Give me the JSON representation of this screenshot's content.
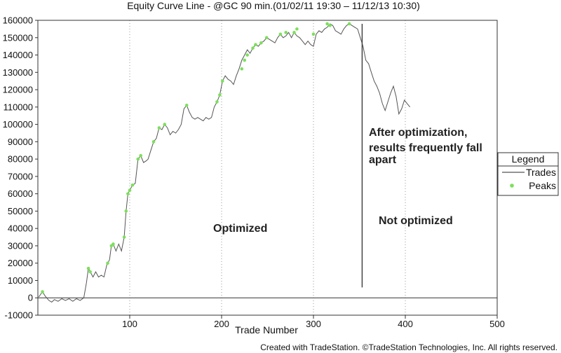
{
  "chart_data": {
    "type": "line",
    "title": "Equity Curve Line - @GC 90 min.(01/02/11 19:30 – 11/12/13 10:30)",
    "xlabel": "Trade Number",
    "ylabel": "",
    "xlim": [
      0,
      500
    ],
    "ylim": [
      -10000,
      160000
    ],
    "x_ticks": [
      100,
      200,
      300,
      400,
      500
    ],
    "y_ticks": [
      -10000,
      0,
      10000,
      20000,
      30000,
      40000,
      50000,
      60000,
      70000,
      80000,
      90000,
      100000,
      110000,
      120000,
      130000,
      140000,
      150000,
      160000
    ],
    "grid": "vertical-dotted",
    "legend": {
      "title": "Legend",
      "placement": "right",
      "entries": [
        {
          "label": "Trades",
          "marker": "line"
        },
        {
          "label": "Peaks",
          "marker": "dot"
        }
      ]
    },
    "series": [
      {
        "name": "Trades",
        "color": "#555555",
        "x": [
          1,
          5,
          8,
          12,
          15,
          18,
          22,
          26,
          30,
          34,
          38,
          42,
          46,
          50,
          53,
          55,
          57,
          60,
          63,
          66,
          69,
          72,
          75,
          78,
          80,
          82,
          85,
          88,
          91,
          94,
          96,
          98,
          100,
          103,
          106,
          109,
          112,
          115,
          118,
          120,
          123,
          126,
          129,
          132,
          135,
          138,
          141,
          144,
          147,
          150,
          153,
          156,
          159,
          162,
          165,
          168,
          171,
          174,
          177,
          180,
          183,
          186,
          189,
          192,
          195,
          198,
          201,
          204,
          207,
          210,
          213,
          216,
          219,
          222,
          225,
          228,
          231,
          234,
          237,
          240,
          243,
          246,
          249,
          252,
          255,
          258,
          261,
          264,
          267,
          270,
          273,
          276,
          279,
          282,
          285,
          288,
          291,
          294,
          297,
          300,
          303,
          306,
          309,
          312,
          315,
          318,
          321,
          324,
          327,
          330,
          333,
          336,
          339,
          342,
          345,
          348,
          351,
          354,
          357,
          360,
          363,
          366,
          369,
          372,
          375,
          378,
          381,
          384,
          387,
          390,
          393,
          396,
          399,
          402,
          405
        ],
        "y": [
          500,
          3500,
          1000,
          -1500,
          -2500,
          -1000,
          -2000,
          -500,
          -1500,
          -500,
          -2000,
          -500,
          -1500,
          0,
          9000,
          17000,
          15000,
          12000,
          15000,
          12000,
          13000,
          12000,
          19000,
          22000,
          30000,
          31000,
          27000,
          31000,
          27000,
          35000,
          50000,
          60000,
          62000,
          65000,
          66000,
          80000,
          82000,
          78000,
          79000,
          80000,
          85000,
          90000,
          92000,
          98000,
          97000,
          100000,
          98000,
          94000,
          96000,
          95000,
          97000,
          100000,
          109000,
          111000,
          107000,
          104000,
          103000,
          104000,
          103000,
          102000,
          104000,
          103000,
          104000,
          110000,
          113000,
          117000,
          125000,
          128000,
          126000,
          125000,
          123000,
          128000,
          132000,
          137000,
          140000,
          143000,
          141000,
          144000,
          146000,
          145000,
          147000,
          148000,
          150000,
          149000,
          148000,
          147000,
          150000,
          152000,
          150000,
          151000,
          153000,
          150000,
          153000,
          151000,
          150000,
          148000,
          146000,
          148000,
          146000,
          145000,
          152000,
          154000,
          153000,
          155000,
          156000,
          158000,
          157000,
          154000,
          153000,
          152000,
          155000,
          157000,
          158000,
          157000,
          156000,
          155000,
          150000,
          145000,
          137000,
          135000,
          130000,
          125000,
          122000,
          118000,
          112000,
          108000,
          113000,
          118000,
          122000,
          116000,
          106000,
          109000,
          114000,
          112000,
          110000
        ]
      },
      {
        "name": "Peaks",
        "color": "#7be05a",
        "x": [
          5,
          55,
          57,
          76,
          80,
          82,
          94,
          96,
          98,
          100,
          103,
          109,
          112,
          126,
          132,
          138,
          162,
          195,
          198,
          201,
          222,
          225,
          228,
          234,
          237,
          243,
          249,
          264,
          270,
          279,
          282,
          300,
          315,
          318,
          339
        ],
        "y": [
          3500,
          17000,
          15000,
          20000,
          30000,
          31000,
          35000,
          50000,
          60000,
          62000,
          65000,
          80000,
          82000,
          90000,
          98000,
          100000,
          111000,
          113000,
          117000,
          125000,
          132000,
          137000,
          140000,
          144000,
          146000,
          147000,
          150000,
          152000,
          153000,
          153000,
          155000,
          152000,
          158000,
          157000,
          158000
        ]
      }
    ],
    "annotations": [
      {
        "lines": [
          "After optimization,",
          "results frequently fall",
          "apart"
        ]
      },
      {
        "lines": [
          "Optimized"
        ]
      },
      {
        "lines": [
          "Not optimized"
        ]
      }
    ],
    "divider_x": 353,
    "credit": "Created with TradeStation. ©TradeStation Technologies, Inc. All rights reserved."
  }
}
